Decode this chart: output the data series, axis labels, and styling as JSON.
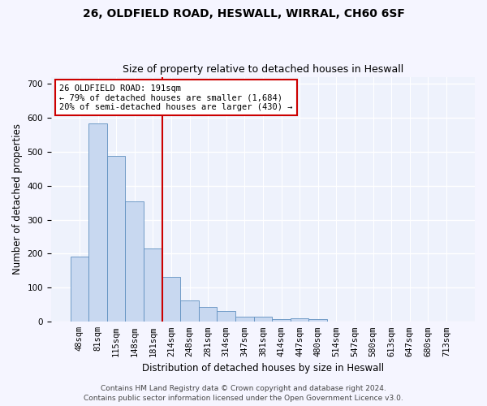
{
  "title_line1": "26, OLDFIELD ROAD, HESWALL, WIRRAL, CH60 6SF",
  "title_line2": "Size of property relative to detached houses in Heswall",
  "xlabel": "Distribution of detached houses by size in Heswall",
  "ylabel": "Number of detached properties",
  "categories": [
    "48sqm",
    "81sqm",
    "115sqm",
    "148sqm",
    "181sqm",
    "214sqm",
    "248sqm",
    "281sqm",
    "314sqm",
    "347sqm",
    "381sqm",
    "414sqm",
    "447sqm",
    "480sqm",
    "514sqm",
    "547sqm",
    "580sqm",
    "613sqm",
    "647sqm",
    "680sqm",
    "713sqm"
  ],
  "values": [
    192,
    583,
    487,
    355,
    215,
    132,
    63,
    44,
    31,
    16,
    16,
    9,
    10,
    9,
    0,
    0,
    0,
    0,
    0,
    0,
    0
  ],
  "bar_color": "#c8d8f0",
  "bar_edge_color": "#6090c0",
  "vline_color": "#cc0000",
  "annotation_text": "26 OLDFIELD ROAD: 191sqm\n← 79% of detached houses are smaller (1,684)\n20% of semi-detached houses are larger (430) →",
  "annotation_box_color": "#ffffff",
  "annotation_box_edge_color": "#cc0000",
  "footer_line1": "Contains HM Land Registry data © Crown copyright and database right 2024.",
  "footer_line2": "Contains public sector information licensed under the Open Government Licence v3.0.",
  "ylim": [
    0,
    720
  ],
  "yticks": [
    0,
    100,
    200,
    300,
    400,
    500,
    600,
    700
  ],
  "background_color": "#eef2fc",
  "grid_color": "#ffffff",
  "title_fontsize": 10,
  "subtitle_fontsize": 9,
  "axis_label_fontsize": 8.5,
  "tick_fontsize": 7.5,
  "annotation_fontsize": 7.5,
  "footer_fontsize": 6.5
}
